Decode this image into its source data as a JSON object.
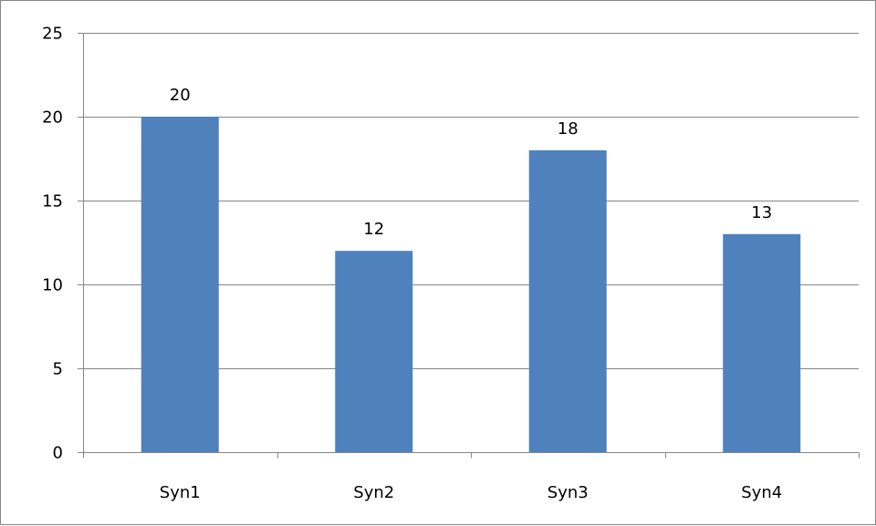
{
  "chart_data": {
    "type": "bar",
    "categories": [
      "Syn1",
      "Syn2",
      "Syn3",
      "Syn4"
    ],
    "values": [
      20,
      12,
      18,
      13
    ],
    "title": "",
    "xlabel": "",
    "ylabel": "",
    "ylim": [
      0,
      25
    ],
    "yticks": [
      "0",
      "5",
      "10",
      "15",
      "20",
      "25"
    ],
    "data_labels": [
      "20",
      "12",
      "18",
      "13"
    ],
    "grid": true,
    "legend": "none",
    "bar_color": "#4f81bd",
    "grid_color": "#868686"
  }
}
